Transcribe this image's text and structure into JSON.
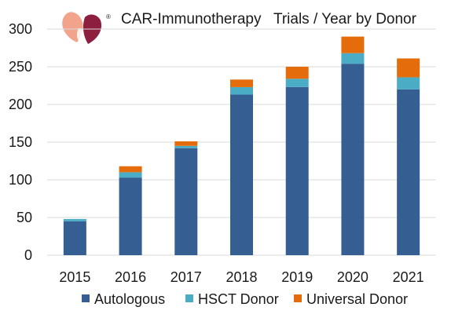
{
  "logo": {
    "mark": "®",
    "colors": [
      "#f2a38c",
      "#8c1f3f"
    ]
  },
  "chart_data": {
    "type": "bar",
    "stacked": true,
    "title": "CAR-Immunotherapy   Trials / Year by Donor",
    "categories": [
      "2015",
      "2016",
      "2017",
      "2018",
      "2019",
      "2020",
      "2021"
    ],
    "series": [
      {
        "name": "Autologous",
        "color": "#355f93",
        "values": [
          45,
          103,
          142,
          213,
          223,
          254,
          220
        ]
      },
      {
        "name": "HSCT Donor",
        "color": "#4bacc6",
        "values": [
          3,
          7,
          3,
          10,
          11,
          14,
          16
        ]
      },
      {
        "name": "Universal Donor",
        "color": "#e46c0a",
        "values": [
          0,
          8,
          6,
          10,
          16,
          22,
          25
        ]
      }
    ],
    "ylim": [
      0,
      300
    ],
    "yticks": [
      0,
      50,
      100,
      150,
      200,
      250,
      300
    ],
    "grid": true,
    "legend_position": "bottom"
  }
}
